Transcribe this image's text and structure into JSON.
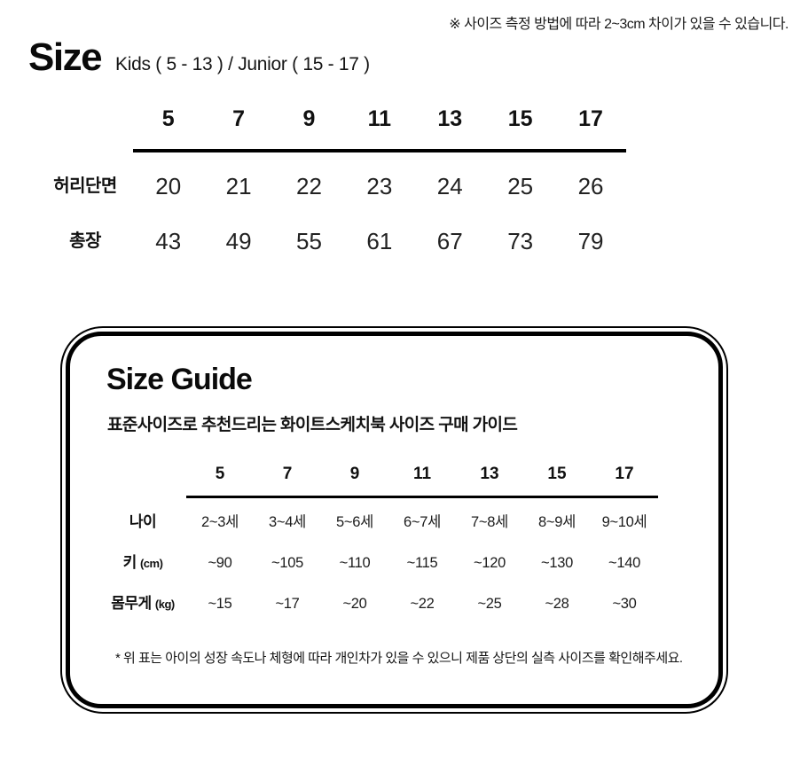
{
  "page": {
    "top_note": "※ 사이즈 측정 방법에 따라 2~3cm 차이가 있을 수 있습니다.",
    "title": "Size",
    "subtitle": "Kids ( 5 - 13 ) / Junior ( 15 - 17 )"
  },
  "size_table": {
    "columns": [
      "5",
      "7",
      "9",
      "11",
      "13",
      "15",
      "17"
    ],
    "rows": [
      {
        "label": "허리단면",
        "values": [
          "20",
          "21",
          "22",
          "23",
          "24",
          "25",
          "26"
        ]
      },
      {
        "label": "총장",
        "values": [
          "43",
          "49",
          "55",
          "61",
          "67",
          "73",
          "79"
        ]
      }
    ]
  },
  "size_guide": {
    "title": "Size Guide",
    "subtitle": "표준사이즈로 추천드리는 화이트스케치북 사이즈 구매 가이드",
    "columns": [
      "5",
      "7",
      "9",
      "11",
      "13",
      "15",
      "17"
    ],
    "rows": [
      {
        "label": "나이",
        "unit": "",
        "values": [
          "2~3세",
          "3~4세",
          "5~6세",
          "6~7세",
          "7~8세",
          "8~9세",
          "9~10세"
        ]
      },
      {
        "label": "키",
        "unit": "(cm)",
        "values": [
          "~90",
          "~105",
          "~110",
          "~115",
          "~120",
          "~130",
          "~140"
        ]
      },
      {
        "label": "몸무게",
        "unit": "(kg)",
        "values": [
          "~15",
          "~17",
          "~20",
          "~22",
          "~25",
          "~28",
          "~30"
        ]
      }
    ],
    "footnote": "* 위 표는 아이의 성장 속도나 체형에 따라 개인차가 있을 수 있으니 제품 상단의 실측 사이즈를 확인해주세요."
  },
  "colors": {
    "text": "#111111",
    "rule": "#000000",
    "background": "#ffffff"
  }
}
